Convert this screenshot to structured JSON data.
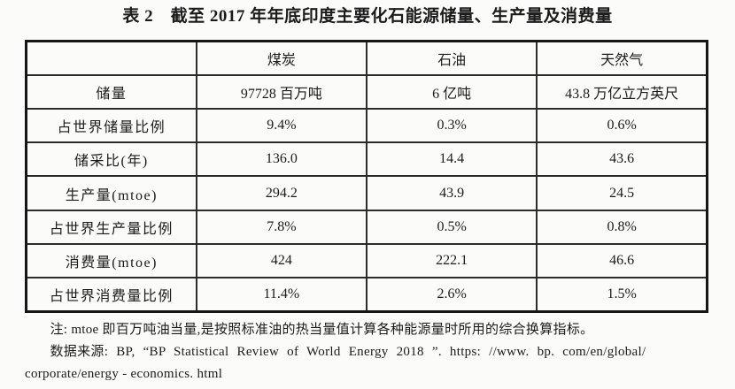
{
  "page": {
    "title": "表 2　截至 2017 年年底印度主要化石能源储量、生产量及消费量"
  },
  "table": {
    "column_headers": [
      "",
      "煤炭",
      "石油",
      "天然气"
    ],
    "rows": [
      [
        "储量",
        "97728 百万吨",
        "6 亿吨",
        "43.8 万亿立方英尺"
      ],
      [
        "占世界储量比例",
        "9.4%",
        "0.3%",
        "0.6%"
      ],
      [
        "储采比(年)",
        "136.0",
        "14.4",
        "43.6"
      ],
      [
        "生产量(mtoe)",
        "294.2",
        "43.9",
        "24.5"
      ],
      [
        "占世界生产量比例",
        "7.8%",
        "0.5%",
        "0.8%"
      ],
      [
        "消费量(mtoe)",
        "424",
        "222.1",
        "46.6"
      ],
      [
        "占世界消费量比例",
        "11.4%",
        "2.6%",
        "1.5%"
      ]
    ]
  },
  "notes": {
    "definition": "注: mtoe 即百万吨油当量,是按照标准油的热当量值计算各种能源量时所用的综合换算指标。",
    "source_line1": "数据来源: BP, “BP Statistical Review of World Energy 2018 ”. https: //www. bp. com/en/global/",
    "source_line2": "corporate/energy - economics. html"
  },
  "colors": {
    "background": "#fbfbfa",
    "text": "#1b1b1b",
    "table_border": "#161616",
    "grid_line": "#2c2c2c"
  }
}
